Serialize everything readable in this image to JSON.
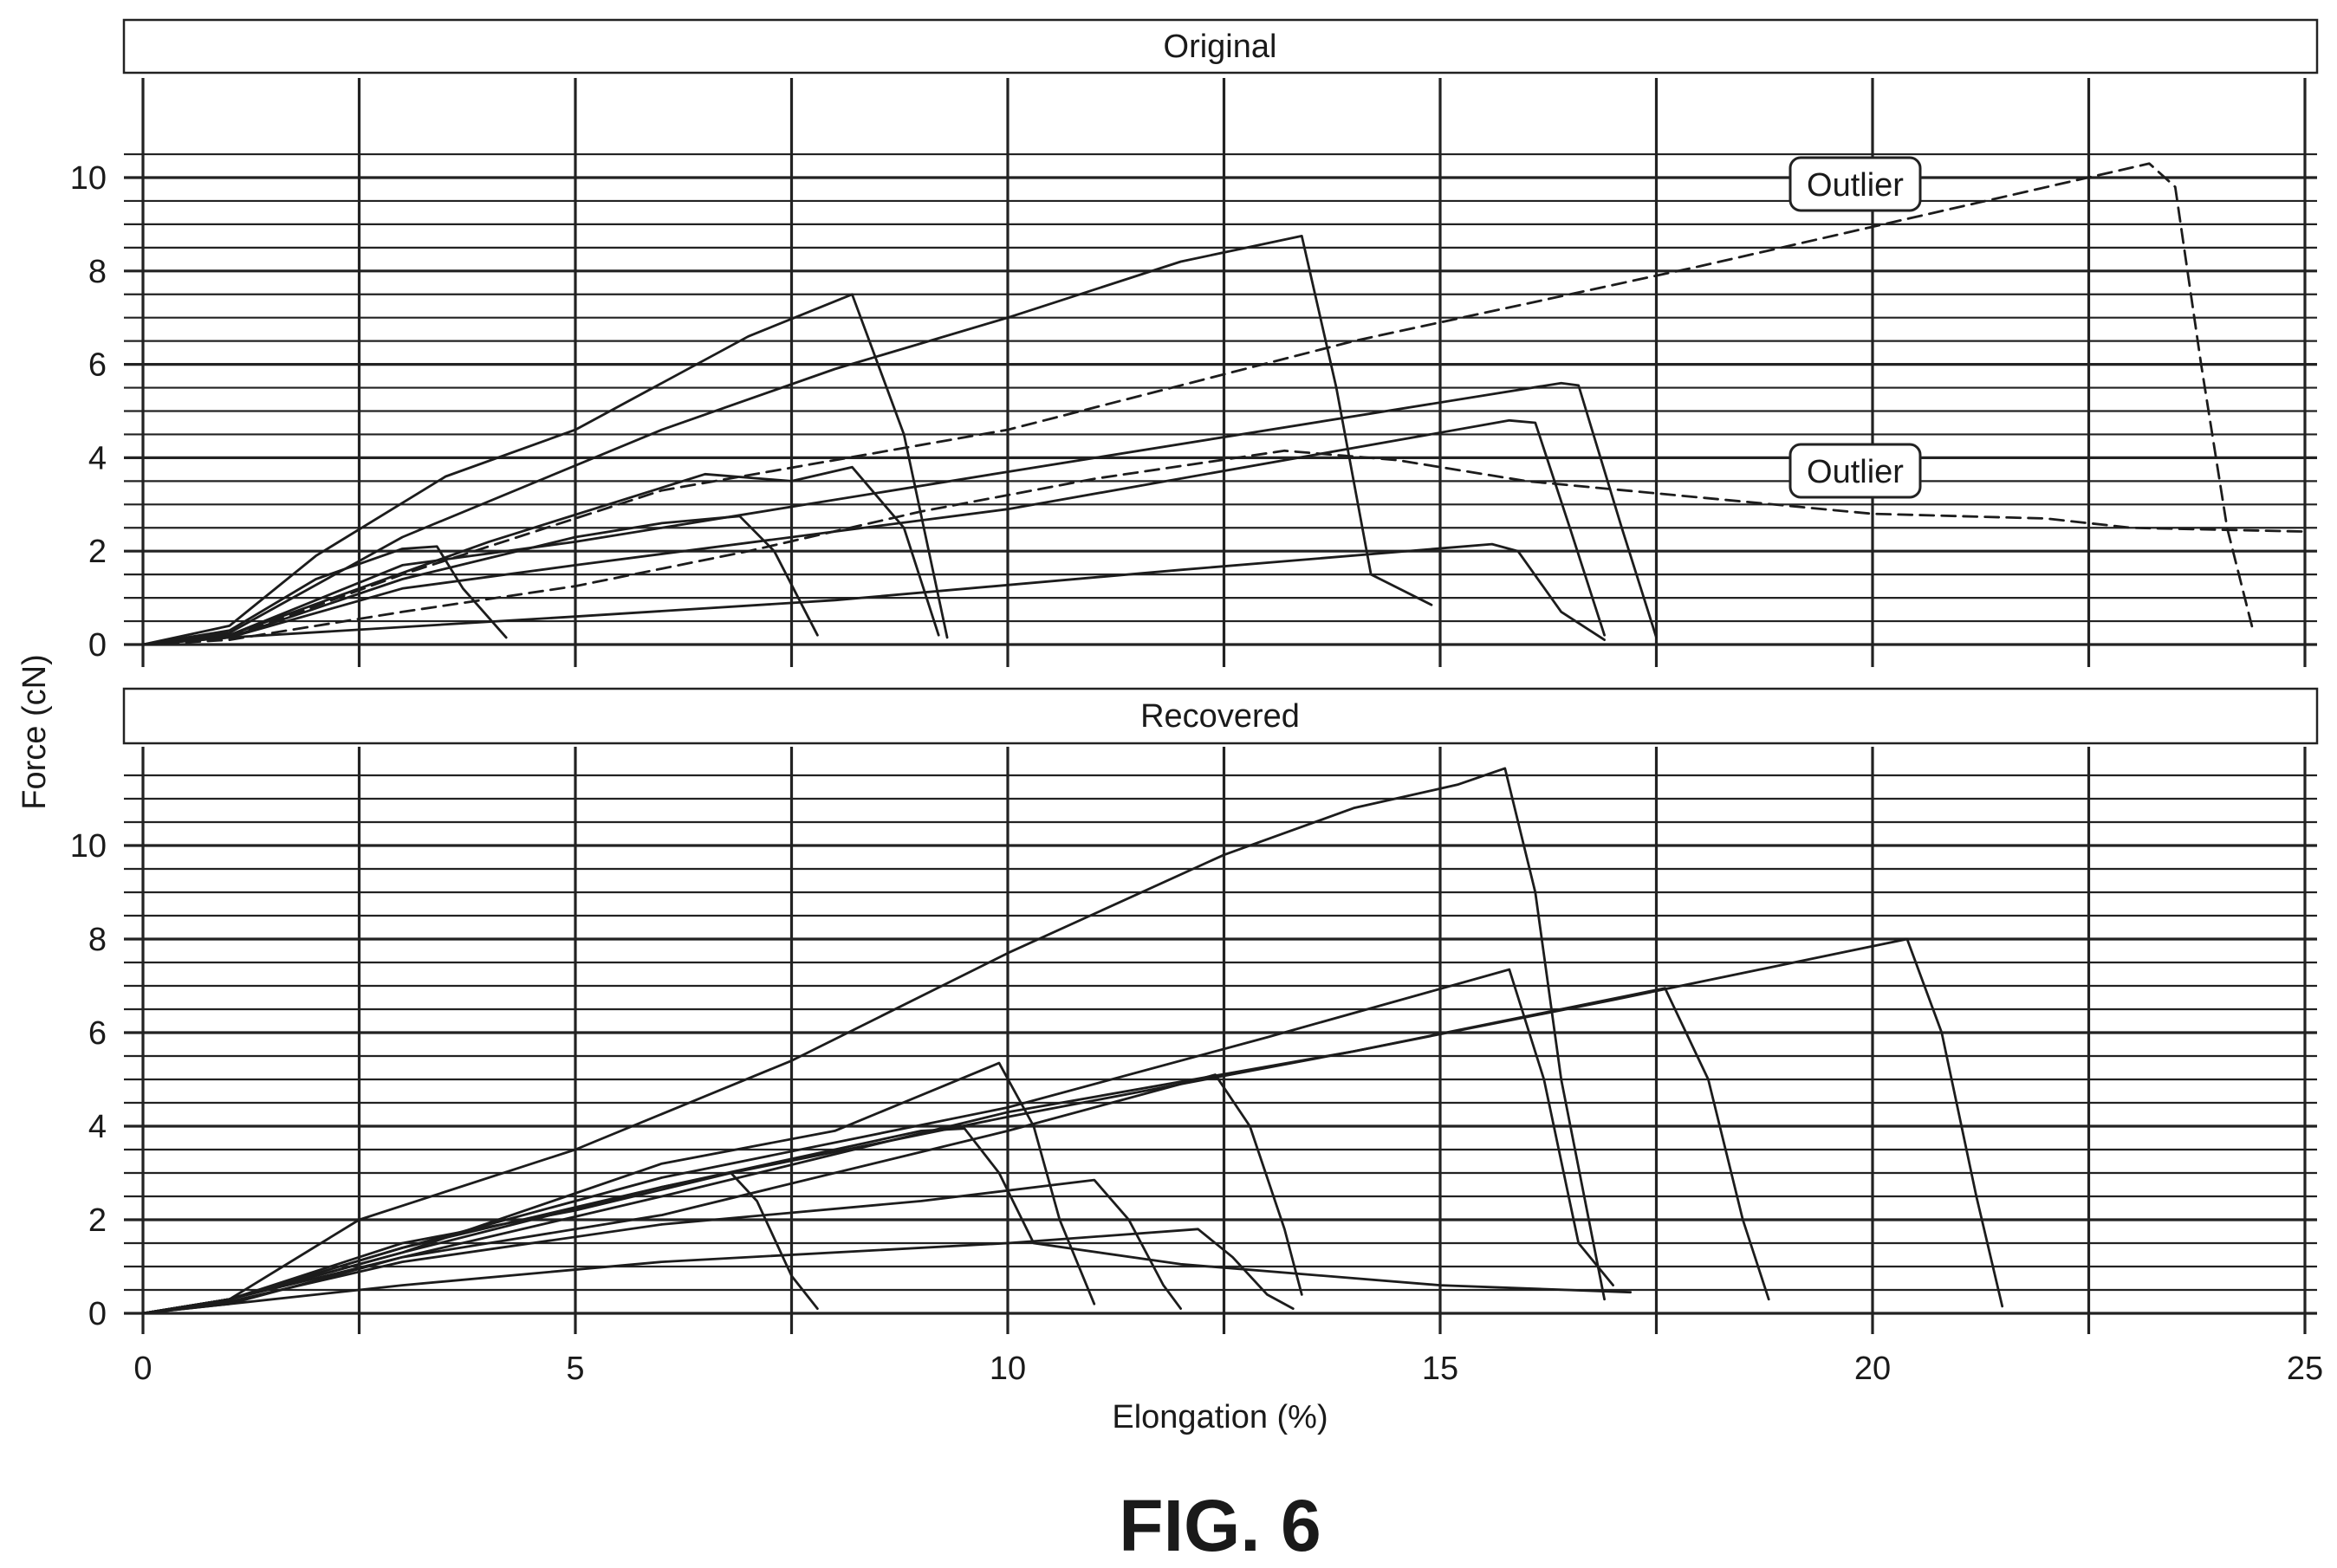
{
  "figure": {
    "caption": "FIG. 6",
    "xlabel": "Elongation (%)",
    "ylabel": "Force (cN)"
  },
  "chart_data": [
    {
      "type": "line",
      "title": "Original",
      "xlim": [
        0,
        25
      ],
      "ylim": [
        0,
        10.5
      ],
      "x_ticks": [
        0,
        5,
        10,
        15,
        20,
        25
      ],
      "y_ticks": [
        0,
        2,
        4,
        6,
        8,
        10
      ],
      "grid": true,
      "annotations": [
        {
          "text": "Outlier",
          "x": 19.8,
          "y": 9.7
        },
        {
          "text": "Outlier",
          "x": 19.8,
          "y": 3.65
        }
      ],
      "series": [
        {
          "style": "solid",
          "points": [
            [
              0,
              0
            ],
            [
              1,
              0.3
            ],
            [
              2,
              1.4
            ],
            [
              3,
              2.05
            ],
            [
              3.4,
              2.1
            ],
            [
              3.7,
              1.2
            ],
            [
              4.2,
              0.15
            ]
          ]
        },
        {
          "style": "solid",
          "points": [
            [
              0,
              0
            ],
            [
              1,
              0.4
            ],
            [
              2,
              1.9
            ],
            [
              3.5,
              3.6
            ],
            [
              5,
              4.6
            ],
            [
              7,
              6.6
            ],
            [
              8.2,
              7.5
            ],
            [
              8.8,
              4.5
            ],
            [
              9.3,
              0.15
            ]
          ]
        },
        {
          "style": "solid",
          "points": [
            [
              0,
              0
            ],
            [
              1,
              0.2
            ],
            [
              2.5,
              1.2
            ],
            [
              4,
              2.2
            ],
            [
              6.5,
              3.65
            ],
            [
              7.5,
              3.5
            ],
            [
              8.2,
              3.8
            ],
            [
              8.8,
              2.5
            ],
            [
              9.2,
              0.2
            ]
          ]
        },
        {
          "style": "solid",
          "points": [
            [
              0,
              0
            ],
            [
              1,
              0.15
            ],
            [
              3,
              1.4
            ],
            [
              5,
              2.3
            ],
            [
              6,
              2.6
            ],
            [
              6.9,
              2.75
            ],
            [
              7.3,
              2
            ],
            [
              7.8,
              0.2
            ]
          ]
        },
        {
          "style": "solid",
          "points": [
            [
              0,
              0
            ],
            [
              1,
              0.2
            ],
            [
              3,
              1.7
            ],
            [
              5,
              2.2
            ],
            [
              10,
              3.7
            ],
            [
              16.4,
              5.6
            ],
            [
              16.6,
              5.55
            ],
            [
              17.1,
              2.5
            ],
            [
              17.5,
              0.15
            ]
          ]
        },
        {
          "style": "solid",
          "points": [
            [
              0,
              0
            ],
            [
              1,
              0.15
            ],
            [
              3,
              1.2
            ],
            [
              5,
              1.7
            ],
            [
              10,
              2.9
            ],
            [
              15.8,
              4.8
            ],
            [
              16.1,
              4.75
            ],
            [
              16.5,
              2.5
            ],
            [
              16.9,
              0.2
            ]
          ]
        },
        {
          "style": "solid",
          "points": [
            [
              0,
              0
            ],
            [
              1,
              0.25
            ],
            [
              3,
              2.3
            ],
            [
              6,
              4.6
            ],
            [
              8,
              5.9
            ],
            [
              10,
              7
            ],
            [
              12,
              8.2
            ],
            [
              13.4,
              8.75
            ],
            [
              13.8,
              5.5
            ],
            [
              14.2,
              1.5
            ],
            [
              14.9,
              0.85
            ]
          ]
        },
        {
          "style": "solid",
          "points": [
            [
              0,
              0
            ],
            [
              1,
              0.15
            ],
            [
              5,
              0.6
            ],
            [
              8,
              0.95
            ],
            [
              12,
              1.6
            ],
            [
              15.6,
              2.15
            ],
            [
              15.9,
              2
            ],
            [
              16.4,
              0.7
            ],
            [
              16.9,
              0.1
            ]
          ]
        },
        {
          "style": "dashed",
          "points": [
            [
              0,
              0
            ],
            [
              1,
              0.1
            ],
            [
              3,
              0.7
            ],
            [
              5,
              1.25
            ],
            [
              7,
              2
            ],
            [
              9,
              2.85
            ],
            [
              11,
              3.55
            ],
            [
              13.2,
              4.15
            ],
            [
              14.5,
              3.95
            ],
            [
              16,
              3.5
            ],
            [
              18,
              3.15
            ],
            [
              20,
              2.8
            ],
            [
              22,
              2.7
            ],
            [
              23,
              2.5
            ],
            [
              25,
              2.42
            ]
          ]
        },
        {
          "style": "dashed",
          "points": [
            [
              0,
              0
            ],
            [
              1,
              0.15
            ],
            [
              3,
              1.5
            ],
            [
              6,
              3.3
            ],
            [
              10,
              4.6
            ],
            [
              14,
              6.5
            ],
            [
              18,
              8.1
            ],
            [
              23.2,
              10.3
            ],
            [
              23.5,
              9.8
            ],
            [
              23.8,
              6
            ],
            [
              24.1,
              2.5
            ],
            [
              24.4,
              0.3
            ]
          ]
        }
      ]
    },
    {
      "type": "line",
      "title": "Recovered",
      "xlim": [
        0,
        25
      ],
      "ylim": [
        0,
        11.8
      ],
      "x_ticks": [
        0,
        5,
        10,
        15,
        20,
        25
      ],
      "y_ticks": [
        0,
        2,
        4,
        6,
        8,
        10
      ],
      "grid": true,
      "series": [
        {
          "style": "solid",
          "points": [
            [
              0,
              0
            ],
            [
              1,
              0.3
            ],
            [
              2.5,
              2
            ],
            [
              5,
              3.5
            ],
            [
              7.5,
              5.4
            ],
            [
              10,
              7.7
            ],
            [
              12.5,
              9.8
            ],
            [
              14,
              10.8
            ],
            [
              15.2,
              11.3
            ],
            [
              15.75,
              11.65
            ],
            [
              16.1,
              9
            ],
            [
              16.4,
              5
            ],
            [
              16.9,
              0.3
            ]
          ]
        },
        {
          "style": "solid",
          "points": [
            [
              0,
              0
            ],
            [
              1,
              0.3
            ],
            [
              3,
              1.4
            ],
            [
              6,
              2.9
            ],
            [
              10,
              4.4
            ],
            [
              13,
              5.9
            ],
            [
              15.8,
              7.35
            ],
            [
              16.2,
              5
            ],
            [
              16.6,
              1.5
            ],
            [
              17,
              0.6
            ]
          ]
        },
        {
          "style": "solid",
          "points": [
            [
              0,
              0
            ],
            [
              1,
              0.3
            ],
            [
              3,
              1.3
            ],
            [
              6,
              2.7
            ],
            [
              10,
              4.2
            ],
            [
              14,
              5.6
            ],
            [
              17.6,
              6.95
            ],
            [
              18.1,
              5
            ],
            [
              18.5,
              2
            ],
            [
              18.8,
              0.3
            ]
          ]
        },
        {
          "style": "solid",
          "points": [
            [
              0,
              0
            ],
            [
              1,
              0.3
            ],
            [
              3,
              1.2
            ],
            [
              6,
              2.5
            ],
            [
              10,
              4.3
            ],
            [
              14,
              5.6
            ],
            [
              17,
              6.7
            ],
            [
              20.4,
              8
            ],
            [
              20.8,
              6
            ],
            [
              21.2,
              2.5
            ],
            [
              21.5,
              0.15
            ]
          ]
        },
        {
          "style": "solid",
          "points": [
            [
              0,
              0
            ],
            [
              1,
              0.3
            ],
            [
              3,
              1.3
            ],
            [
              6,
              3.2
            ],
            [
              8,
              3.9
            ],
            [
              9.9,
              5.35
            ],
            [
              10.3,
              4
            ],
            [
              10.6,
              2
            ],
            [
              11,
              0.2
            ]
          ]
        },
        {
          "style": "solid",
          "points": [
            [
              0,
              0
            ],
            [
              1,
              0.3
            ],
            [
              3,
              1.4
            ],
            [
              6,
              2.7
            ],
            [
              9,
              3.9
            ],
            [
              9.5,
              3.95
            ],
            [
              9.9,
              3
            ],
            [
              10.3,
              1.5
            ],
            [
              12,
              1.05
            ],
            [
              15,
              0.6
            ],
            [
              17.2,
              0.45
            ]
          ]
        },
        {
          "style": "solid",
          "points": [
            [
              0,
              0
            ],
            [
              1,
              0.2
            ],
            [
              3,
              1.2
            ],
            [
              6,
              2.1
            ],
            [
              10,
              3.9
            ],
            [
              12.4,
              5.1
            ],
            [
              12.8,
              4
            ],
            [
              13.2,
              1.8
            ],
            [
              13.4,
              0.4
            ]
          ]
        },
        {
          "style": "solid",
          "points": [
            [
              0,
              0
            ],
            [
              1,
              0.3
            ],
            [
              3,
              1.5
            ],
            [
              5,
              2.2
            ],
            [
              6.8,
              3
            ],
            [
              7.1,
              2.4
            ],
            [
              7.5,
              0.8
            ],
            [
              7.8,
              0.1
            ]
          ]
        },
        {
          "style": "solid",
          "points": [
            [
              0,
              0
            ],
            [
              1,
              0.25
            ],
            [
              3,
              1.1
            ],
            [
              6,
              1.9
            ],
            [
              9,
              2.4
            ],
            [
              11,
              2.85
            ],
            [
              11.4,
              2
            ],
            [
              11.8,
              0.6
            ],
            [
              12,
              0.1
            ]
          ]
        },
        {
          "style": "solid",
          "points": [
            [
              0,
              0
            ],
            [
              1,
              0.2
            ],
            [
              3,
              0.6
            ],
            [
              6,
              1.1
            ],
            [
              10,
              1.5
            ],
            [
              12.2,
              1.8
            ],
            [
              12.6,
              1.2
            ],
            [
              13,
              0.4
            ],
            [
              13.3,
              0.1
            ]
          ]
        }
      ]
    }
  ]
}
